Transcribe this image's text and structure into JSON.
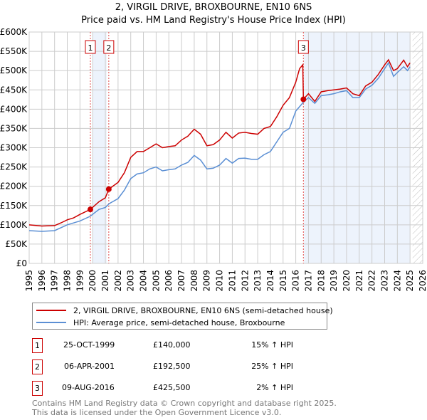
{
  "title": "2, VIRGIL DRIVE, BROXBOURNE, EN10 6NS",
  "subtitle": "Price paid vs. HM Land Registry's House Price Index (HPI)",
  "chart_data": {
    "type": "line",
    "xlim": [
      1995,
      2026
    ],
    "ylim": [
      0,
      600000
    ],
    "x_ticks": [
      "1995",
      "1996",
      "1997",
      "1998",
      "1999",
      "2000",
      "2001",
      "2002",
      "2003",
      "2004",
      "2005",
      "2006",
      "2007",
      "2008",
      "2009",
      "2010",
      "2011",
      "2012",
      "2013",
      "2014",
      "2015",
      "2016",
      "2017",
      "2018",
      "2019",
      "2020",
      "2021",
      "2022",
      "2023",
      "2024",
      "2025",
      "2026"
    ],
    "y_ticks": [
      {
        "v": 0,
        "label": "£0"
      },
      {
        "v": 50000,
        "label": "£50K"
      },
      {
        "v": 100000,
        "label": "£100K"
      },
      {
        "v": 150000,
        "label": "£150K"
      },
      {
        "v": 200000,
        "label": "£200K"
      },
      {
        "v": 250000,
        "label": "£250K"
      },
      {
        "v": 300000,
        "label": "£300K"
      },
      {
        "v": 350000,
        "label": "£350K"
      },
      {
        "v": 400000,
        "label": "£400K"
      },
      {
        "v": 450000,
        "label": "£450K"
      },
      {
        "v": 500000,
        "label": "£500K"
      },
      {
        "v": 550000,
        "label": "£550K"
      },
      {
        "v": 600000,
        "label": "£600K"
      }
    ],
    "grid": true,
    "shaded_ranges": [
      [
        2000.0,
        2001.1
      ],
      [
        2016.65,
        2025.0
      ]
    ],
    "hatched_range": [
      2025.2,
      2026
    ],
    "series": [
      {
        "name": "2, VIRGIL DRIVE, BROXBOURNE, EN10 6NS (semi-detached house)",
        "color": "#cc0000",
        "x": [
          1995,
          1996,
          1997,
          1997.5,
          1998,
          1998.5,
          1999,
          1999.82,
          2000.5,
          2001,
          2001.27,
          2002,
          2002.5,
          2003,
          2003.5,
          2004,
          2004.5,
          2005,
          2005.5,
          2006,
          2006.5,
          2007,
          2007.5,
          2008,
          2008.5,
          2009,
          2009.5,
          2010,
          2010.5,
          2011,
          2011.5,
          2012,
          2012.5,
          2013,
          2013.5,
          2014,
          2014.5,
          2015,
          2015.5,
          2016,
          2016.3,
          2016.55,
          2016.6,
          2017,
          2017.5,
          2018,
          2018.5,
          2019,
          2019.5,
          2020,
          2020.5,
          2021,
          2021.5,
          2022,
          2022.5,
          2023,
          2023.3,
          2023.7,
          2024,
          2024.5,
          2024.8,
          2025
        ],
        "y": [
          100000,
          97000,
          98000,
          105000,
          113000,
          118000,
          127000,
          140000,
          160000,
          170000,
          192500,
          210000,
          235000,
          275000,
          290000,
          290000,
          300000,
          310000,
          300000,
          303000,
          305000,
          320000,
          330000,
          348000,
          335000,
          305000,
          308000,
          320000,
          340000,
          325000,
          338000,
          340000,
          337000,
          335000,
          350000,
          355000,
          380000,
          410000,
          430000,
          470000,
          505000,
          515000,
          425500,
          440000,
          420000,
          445000,
          448000,
          450000,
          452000,
          455000,
          440000,
          435000,
          460000,
          470000,
          490000,
          515000,
          528000,
          500000,
          505000,
          527000,
          510000,
          520000
        ]
      },
      {
        "name": "HPI: Average price, semi-detached house, Broxbourne",
        "color": "#5b8fd4",
        "x": [
          1995,
          1996,
          1997,
          1998,
          1999,
          1999.8,
          2000.5,
          2001,
          2001.3,
          2002,
          2002.5,
          2003,
          2003.5,
          2004,
          2004.5,
          2005,
          2005.5,
          2006,
          2006.5,
          2007,
          2007.5,
          2008,
          2008.5,
          2009,
          2009.5,
          2010,
          2010.5,
          2011,
          2011.5,
          2012,
          2012.5,
          2013,
          2013.5,
          2014,
          2014.5,
          2015,
          2015.5,
          2016,
          2016.6,
          2017,
          2017.5,
          2018,
          2018.5,
          2019,
          2019.5,
          2020,
          2020.5,
          2021,
          2021.5,
          2022,
          2022.5,
          2023,
          2023.3,
          2023.7,
          2024,
          2024.5,
          2024.8,
          2025
        ],
        "y": [
          85000,
          83000,
          85000,
          100000,
          110000,
          122000,
          140000,
          145000,
          155000,
          168000,
          190000,
          220000,
          232000,
          235000,
          245000,
          250000,
          240000,
          243000,
          245000,
          255000,
          262000,
          280000,
          268000,
          245000,
          247000,
          255000,
          272000,
          260000,
          272000,
          273000,
          270000,
          270000,
          282000,
          290000,
          315000,
          340000,
          350000,
          395000,
          418000,
          430000,
          415000,
          435000,
          437000,
          440000,
          445000,
          448000,
          430000,
          430000,
          452000,
          462000,
          480000,
          505000,
          520000,
          485000,
          495000,
          510000,
          500000,
          510000
        ]
      }
    ],
    "sales": [
      {
        "label": "1",
        "x": 1999.82,
        "y": 140000,
        "date": "25-OCT-1999",
        "price": "£140,000",
        "hpi": "15% ↑ HPI"
      },
      {
        "label": "2",
        "x": 2001.27,
        "y": 192500,
        "date": "06-APR-2001",
        "price": "£192,500",
        "hpi": "25% ↑ HPI"
      },
      {
        "label": "3",
        "x": 2016.6,
        "y": 425500,
        "date": "09-AUG-2016",
        "price": "£425,500",
        "hpi": "2% ↑ HPI"
      }
    ]
  },
  "legend": {
    "red": "2, VIRGIL DRIVE, BROXBOURNE, EN10 6NS (semi-detached house)",
    "blue": "HPI: Average price, semi-detached house, Broxbourne"
  },
  "footer": {
    "line1": "Contains HM Land Registry data © Crown copyright and database right 2025.",
    "line2": "This data is licensed under the Open Government Licence v3.0."
  }
}
